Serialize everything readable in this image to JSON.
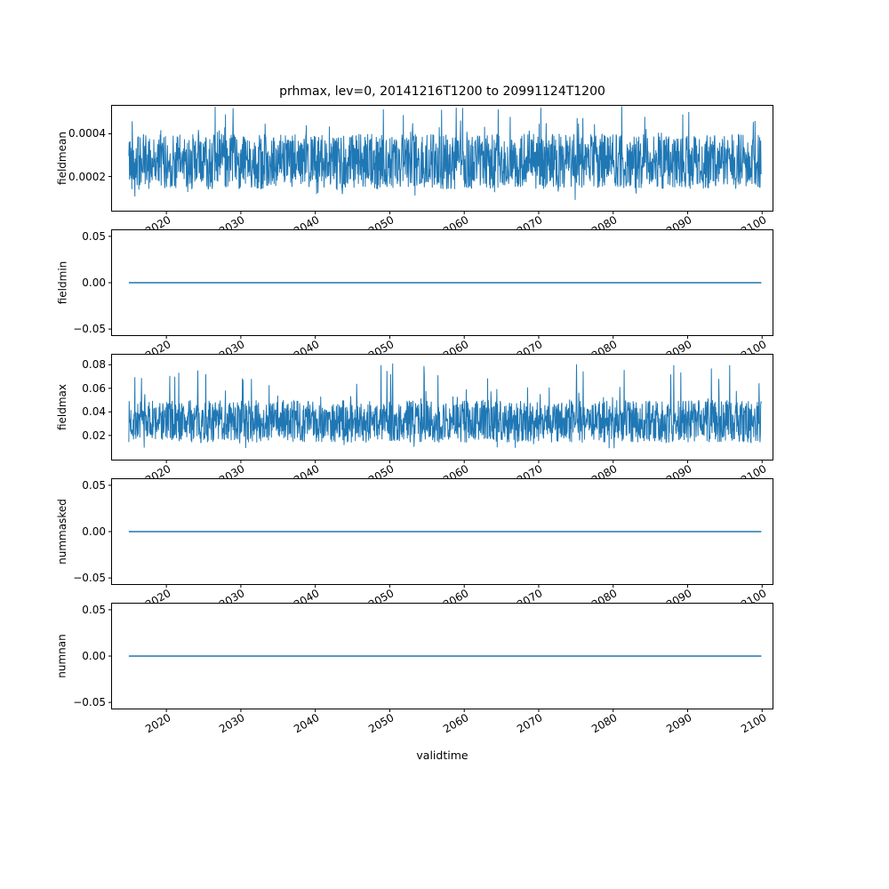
{
  "title": "prhmax, lev=0, 20141216T1200 to 20991124T1200",
  "xlabel": "validtime",
  "line_color": "#1f77b4",
  "axis_color": "#000000",
  "xlim": [
    2012.7,
    2101.4
  ],
  "x_start": 2014.96,
  "x_end": 2099.9,
  "xticks": [
    2020,
    2030,
    2040,
    2050,
    2060,
    2070,
    2080,
    2090,
    2100
  ],
  "xtick_labels": [
    "2020",
    "2030",
    "2040",
    "2050",
    "2060",
    "2070",
    "2080",
    "2090",
    "2100"
  ],
  "chart_data": [
    {
      "type": "line",
      "ylabel": "fieldmean",
      "ylim": [
        4e-05,
        0.000531
      ],
      "yticks": [
        0.0002,
        0.0004
      ],
      "ytick_labels": [
        "0.0002",
        "0.0004"
      ],
      "series": {
        "kind": "noise",
        "seed": 42,
        "n": 1900,
        "band": [
          0.00014,
          0.0004
        ],
        "envelope": [
          9e-05,
          0.00053
        ],
        "envelope_prob": 0.08
      },
      "summary": "dense noisy signal fluctuating between ~0.0001 and ~0.00053, mean ~0.00027, no trend"
    },
    {
      "type": "line",
      "ylabel": "fieldmin",
      "ylim": [
        -0.0566,
        0.0566
      ],
      "yticks": [
        0.05,
        0.0,
        -0.05
      ],
      "ytick_labels": [
        "0.05",
        "0.00",
        "−0.05"
      ],
      "series": {
        "kind": "constant",
        "value": 0.0
      },
      "summary": "constant 0.00 for entire period"
    },
    {
      "type": "line",
      "ylabel": "fieldmax",
      "ylim": [
        -0.0005,
        0.0885
      ],
      "yticks": [
        0.08,
        0.06,
        0.04,
        0.02
      ],
      "ytick_labels": [
        "0.08",
        "0.06",
        "0.04",
        "0.02"
      ],
      "series": {
        "kind": "noise",
        "seed": 7,
        "n": 1900,
        "band": [
          0.014,
          0.05
        ],
        "envelope": [
          0.009,
          0.082
        ],
        "envelope_prob": 0.06
      },
      "summary": "dense noisy signal mostly 0.015-0.055 with spikes up to ~0.08, min ~0.01"
    },
    {
      "type": "line",
      "ylabel": "nummasked",
      "ylim": [
        -0.0566,
        0.0566
      ],
      "yticks": [
        0.05,
        0.0,
        -0.05
      ],
      "ytick_labels": [
        "0.05",
        "0.00",
        "−0.05"
      ],
      "series": {
        "kind": "constant",
        "value": 0.0
      },
      "summary": "constant 0.00 for entire period"
    },
    {
      "type": "line",
      "ylabel": "numnan",
      "ylim": [
        -0.0566,
        0.0566
      ],
      "yticks": [
        0.05,
        0.0,
        -0.05
      ],
      "ytick_labels": [
        "0.05",
        "0.00",
        "−0.05"
      ],
      "series": {
        "kind": "constant",
        "value": 0.0
      },
      "summary": "constant 0.00 for entire period"
    }
  ]
}
